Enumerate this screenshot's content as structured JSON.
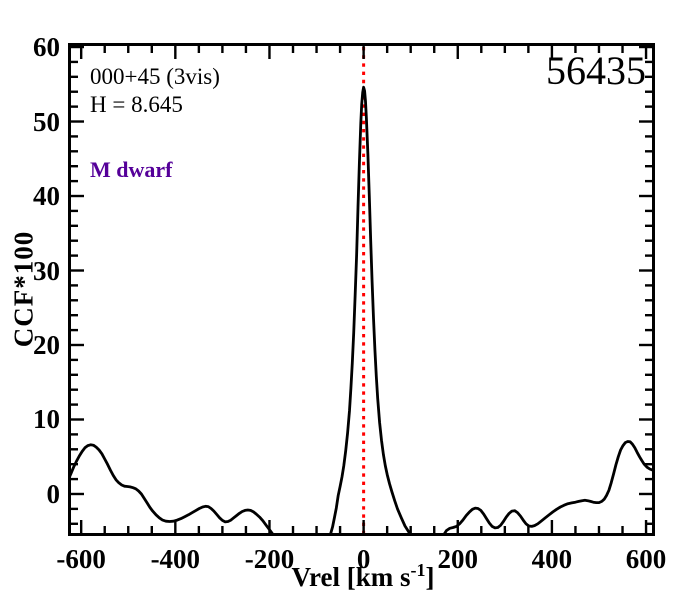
{
  "figure": {
    "background": "#FFFFFF",
    "frame_color": "#000000"
  },
  "chart_data": {
    "type": "line",
    "title": "56435",
    "xlabel": "Vrel [km s-1]",
    "xlabel_parts": {
      "pre": "Vrel [km s",
      "sup": "-1",
      "post": "]"
    },
    "ylabel": "CCF*100",
    "xlim": [
      -628,
      619
    ],
    "ylim": [
      -5.64,
      60.54
    ],
    "x_major_ticks": [
      -600,
      -400,
      -200,
      0,
      200,
      400,
      600
    ],
    "x_minor_step": 50,
    "y_major_ticks": [
      0,
      10,
      20,
      30,
      40,
      50,
      60
    ],
    "y_minor_step": 2,
    "grid": false,
    "legend": null,
    "annotations": {
      "field": "000+45 (3vis)",
      "hmag": "H = 8.645",
      "stellar_class": "M dwarf"
    },
    "colors": {
      "curve": "#000000",
      "marker_line": "#FF0000",
      "class_label": "#550099"
    },
    "marker_line": {
      "x": 0,
      "style": "dotted"
    },
    "series": [
      {
        "name": "ccf-curve",
        "color": "#000000",
        "points": [
          [
            -628,
            1.8
          ],
          [
            -622,
            2.7
          ],
          [
            -616,
            3.6
          ],
          [
            -610,
            4.4
          ],
          [
            -604,
            5.1
          ],
          [
            -598,
            5.7
          ],
          [
            -592,
            6.2
          ],
          [
            -586,
            6.5
          ],
          [
            -580,
            6.6
          ],
          [
            -574,
            6.55
          ],
          [
            -568,
            6.3
          ],
          [
            -562,
            5.9
          ],
          [
            -556,
            5.4
          ],
          [
            -550,
            4.7
          ],
          [
            -544,
            4.0
          ],
          [
            -538,
            3.2
          ],
          [
            -532,
            2.5
          ],
          [
            -526,
            1.9
          ],
          [
            -520,
            1.5
          ],
          [
            -514,
            1.2
          ],
          [
            -508,
            1.05
          ],
          [
            -502,
            1.0
          ],
          [
            -496,
            0.95
          ],
          [
            -490,
            0.85
          ],
          [
            -484,
            0.7
          ],
          [
            -478,
            0.4
          ],
          [
            -472,
            0.0
          ],
          [
            -466,
            -0.6
          ],
          [
            -460,
            -1.2
          ],
          [
            -454,
            -1.8
          ],
          [
            -448,
            -2.3
          ],
          [
            -441,
            -2.8
          ],
          [
            -434,
            -3.2
          ],
          [
            -427,
            -3.5
          ],
          [
            -420,
            -3.65
          ],
          [
            -412,
            -3.7
          ],
          [
            -404,
            -3.65
          ],
          [
            -396,
            -3.5
          ],
          [
            -388,
            -3.3
          ],
          [
            -380,
            -3.05
          ],
          [
            -372,
            -2.8
          ],
          [
            -364,
            -2.5
          ],
          [
            -356,
            -2.2
          ],
          [
            -349,
            -1.95
          ],
          [
            -342,
            -1.75
          ],
          [
            -336,
            -1.65
          ],
          [
            -330,
            -1.7
          ],
          [
            -324,
            -1.95
          ],
          [
            -318,
            -2.3
          ],
          [
            -312,
            -2.75
          ],
          [
            -306,
            -3.2
          ],
          [
            -300,
            -3.55
          ],
          [
            -294,
            -3.75
          ],
          [
            -288,
            -3.7
          ],
          [
            -282,
            -3.5
          ],
          [
            -276,
            -3.2
          ],
          [
            -270,
            -2.9
          ],
          [
            -264,
            -2.6
          ],
          [
            -258,
            -2.35
          ],
          [
            -252,
            -2.2
          ],
          [
            -246,
            -2.15
          ],
          [
            -240,
            -2.2
          ],
          [
            -234,
            -2.4
          ],
          [
            -228,
            -2.7
          ],
          [
            -221,
            -3.1
          ],
          [
            -214,
            -3.6
          ],
          [
            -207,
            -4.2
          ],
          [
            -200,
            -4.8
          ],
          [
            -193,
            -5.4
          ],
          [
            -186,
            -6.0
          ],
          [
            -179,
            -6.6
          ],
          [
            -172,
            -7.1
          ],
          [
            -165,
            -7.4
          ],
          [
            -150,
            -7.6
          ],
          [
            -135,
            -7.6
          ],
          [
            -120,
            -7.4
          ],
          [
            -105,
            -7.0
          ],
          [
            -90,
            -6.6
          ],
          [
            -80,
            -6.3
          ],
          [
            -75,
            -6.2
          ],
          [
            -70,
            -5.3
          ],
          [
            -66,
            -4.4
          ],
          [
            -62,
            -3.2
          ],
          [
            -58,
            -1.9
          ],
          [
            -54,
            -0.2
          ],
          [
            -50,
            1.0
          ],
          [
            -46,
            2.3
          ],
          [
            -42,
            3.8
          ],
          [
            -38,
            5.8
          ],
          [
            -34,
            8.2
          ],
          [
            -30,
            11.2
          ],
          [
            -27,
            14.2
          ],
          [
            -24,
            17.6
          ],
          [
            -21,
            21.6
          ],
          [
            -18,
            26.5
          ],
          [
            -15,
            32.0
          ],
          [
            -12,
            38.5
          ],
          [
            -9,
            44.5
          ],
          [
            -6,
            49.8
          ],
          [
            -4,
            52.3
          ],
          [
            -2,
            53.9
          ],
          [
            0,
            54.6
          ],
          [
            2,
            54.1
          ],
          [
            4,
            52.7
          ],
          [
            6,
            50.4
          ],
          [
            9,
            45.6
          ],
          [
            12,
            40.0
          ],
          [
            15,
            34.0
          ],
          [
            18,
            28.5
          ],
          [
            21,
            23.6
          ],
          [
            24,
            19.4
          ],
          [
            27,
            15.8
          ],
          [
            30,
            12.8
          ],
          [
            34,
            9.6
          ],
          [
            38,
            7.2
          ],
          [
            42,
            5.3
          ],
          [
            46,
            3.8
          ],
          [
            50,
            2.6
          ],
          [
            55,
            1.4
          ],
          [
            60,
            0.3
          ],
          [
            66,
            -0.9
          ],
          [
            72,
            -2.0
          ],
          [
            80,
            -3.2
          ],
          [
            88,
            -4.3
          ],
          [
            96,
            -5.1
          ],
          [
            104,
            -5.8
          ],
          [
            112,
            -6.4
          ],
          [
            125,
            -7.2
          ],
          [
            140,
            -7.6
          ],
          [
            155,
            -7.2
          ],
          [
            163,
            -6.4
          ],
          [
            170,
            -5.5
          ],
          [
            176,
            -4.9
          ],
          [
            183,
            -4.6
          ],
          [
            190,
            -4.5
          ],
          [
            197,
            -4.35
          ],
          [
            204,
            -4.0
          ],
          [
            211,
            -3.5
          ],
          [
            218,
            -2.9
          ],
          [
            225,
            -2.4
          ],
          [
            231,
            -2.05
          ],
          [
            237,
            -1.9
          ],
          [
            243,
            -1.95
          ],
          [
            249,
            -2.2
          ],
          [
            255,
            -2.7
          ],
          [
            261,
            -3.3
          ],
          [
            267,
            -3.9
          ],
          [
            273,
            -4.35
          ],
          [
            279,
            -4.55
          ],
          [
            285,
            -4.5
          ],
          [
            291,
            -4.2
          ],
          [
            297,
            -3.7
          ],
          [
            303,
            -3.1
          ],
          [
            309,
            -2.6
          ],
          [
            315,
            -2.3
          ],
          [
            321,
            -2.25
          ],
          [
            327,
            -2.5
          ],
          [
            333,
            -2.95
          ],
          [
            339,
            -3.5
          ],
          [
            345,
            -4.0
          ],
          [
            351,
            -4.3
          ],
          [
            357,
            -4.35
          ],
          [
            363,
            -4.25
          ],
          [
            370,
            -4.0
          ],
          [
            378,
            -3.6
          ],
          [
            386,
            -3.2
          ],
          [
            394,
            -2.8
          ],
          [
            402,
            -2.4
          ],
          [
            410,
            -2.05
          ],
          [
            418,
            -1.75
          ],
          [
            426,
            -1.5
          ],
          [
            434,
            -1.3
          ],
          [
            442,
            -1.2
          ],
          [
            450,
            -1.1
          ],
          [
            457,
            -1.0
          ],
          [
            464,
            -0.9
          ],
          [
            470,
            -0.85
          ],
          [
            476,
            -0.9
          ],
          [
            482,
            -1.0
          ],
          [
            488,
            -1.1
          ],
          [
            494,
            -1.15
          ],
          [
            500,
            -1.15
          ],
          [
            506,
            -1.0
          ],
          [
            511,
            -0.7
          ],
          [
            516,
            -0.2
          ],
          [
            521,
            0.5
          ],
          [
            526,
            1.5
          ],
          [
            531,
            2.7
          ],
          [
            536,
            3.9
          ],
          [
            541,
            5.0
          ],
          [
            546,
            5.9
          ],
          [
            551,
            6.5
          ],
          [
            556,
            6.9
          ],
          [
            561,
            7.05
          ],
          [
            566,
            7.0
          ],
          [
            571,
            6.7
          ],
          [
            576,
            6.2
          ],
          [
            581,
            5.6
          ],
          [
            586,
            5.0
          ],
          [
            591,
            4.5
          ],
          [
            596,
            4.0
          ],
          [
            602,
            3.6
          ],
          [
            608,
            3.35
          ],
          [
            614,
            3.2
          ],
          [
            619,
            3.15
          ]
        ]
      }
    ]
  }
}
